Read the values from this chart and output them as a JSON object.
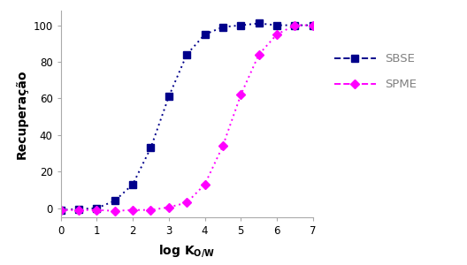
{
  "sbse_x": [
    0,
    0.5,
    1.0,
    1.5,
    2.0,
    2.5,
    3.0,
    3.5,
    4.0,
    4.5,
    5.0,
    5.5,
    6.0,
    6.5,
    7.0
  ],
  "sbse_y": [
    -1,
    -0.5,
    0,
    4,
    13,
    33,
    61,
    84,
    95,
    99,
    100,
    101,
    100,
    100,
    100
  ],
  "spme_x": [
    0,
    0.5,
    1.0,
    1.5,
    2.0,
    2.5,
    3.0,
    3.5,
    4.0,
    4.5,
    5.0,
    5.5,
    6.0,
    6.5,
    7.0
  ],
  "spme_y": [
    -1,
    -1,
    -1,
    -1.5,
    -1,
    -1,
    0.5,
    3,
    13,
    34,
    62,
    84,
    95,
    100,
    100
  ],
  "sbse_color": "#00008B",
  "spme_color": "#FF00FF",
  "xlabel": "log $\\mathbf{K}_{\\mathbf{O/W}}$",
  "ylabel": "Recuperação",
  "xlim": [
    0,
    7
  ],
  "ylim": [
    -5,
    108
  ],
  "xticks": [
    0,
    1,
    2,
    3,
    4,
    5,
    6,
    7
  ],
  "yticks": [
    0,
    20,
    40,
    60,
    80,
    100
  ],
  "legend_sbse": "SBSE",
  "legend_spme": "SPME",
  "legend_text_color": "#808080"
}
